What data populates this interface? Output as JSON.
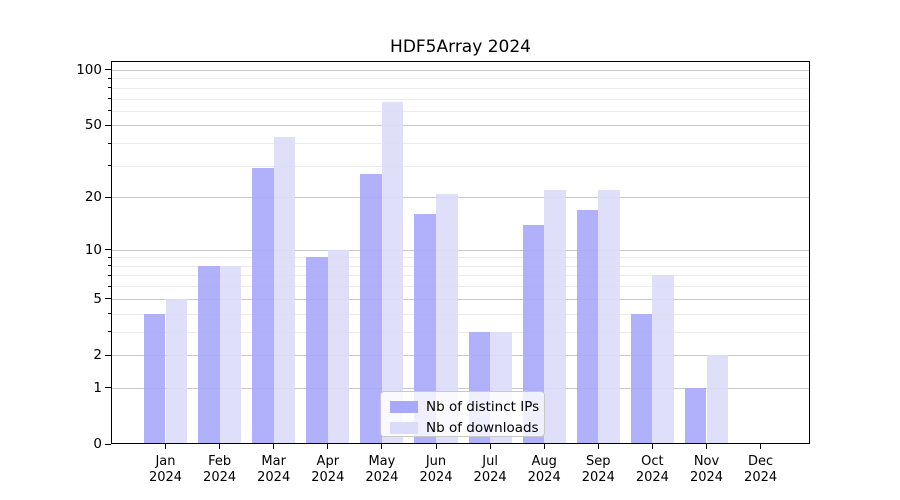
{
  "title": "HDF5Array 2024",
  "year_label": "2024",
  "months": [
    "Jan",
    "Feb",
    "Mar",
    "Apr",
    "May",
    "Jun",
    "Jul",
    "Aug",
    "Sep",
    "Oct",
    "Nov",
    "Dec"
  ],
  "legend": {
    "items": [
      {
        "label": "Nb of distinct IPs",
        "color": "#a9a9fb"
      },
      {
        "label": "Nb of downloads",
        "color": "#dbdbfa"
      }
    ]
  },
  "axes": {
    "y_major_ticks": [
      0,
      1,
      2,
      5,
      10,
      20,
      50,
      100
    ],
    "y_minor_ticks": [
      3,
      4,
      6,
      7,
      8,
      9,
      30,
      40,
      60,
      70,
      80,
      90
    ],
    "grid_major_color": "#c8c8c8",
    "grid_minor_color": "#ebebeb",
    "spine_color": "#000000"
  },
  "chart_data": {
    "type": "bar",
    "title": "HDF5Array 2024",
    "xlabel": "",
    "ylabel": "",
    "yscale": "log1p",
    "ylim": [
      0,
      112
    ],
    "grid": "on",
    "legend_position": "inside-bottom-center",
    "categories": [
      "Jan 2024",
      "Feb 2024",
      "Mar 2024",
      "Apr 2024",
      "May 2024",
      "Jun 2024",
      "Jul 2024",
      "Aug 2024",
      "Sep 2024",
      "Oct 2024",
      "Nov 2024",
      "Dec 2024"
    ],
    "yticks": [
      0,
      1,
      2,
      5,
      10,
      20,
      50,
      100
    ],
    "series": [
      {
        "name": "Nb of distinct IPs",
        "color": "#a9a9fb",
        "values": [
          4,
          8,
          29,
          9,
          27,
          16,
          3,
          14,
          17,
          4,
          1,
          0
        ]
      },
      {
        "name": "Nb of downloads",
        "color": "#dbdbfa",
        "values": [
          5,
          8,
          43,
          10,
          67,
          21,
          3,
          22,
          22,
          7,
          2,
          0
        ]
      }
    ]
  }
}
